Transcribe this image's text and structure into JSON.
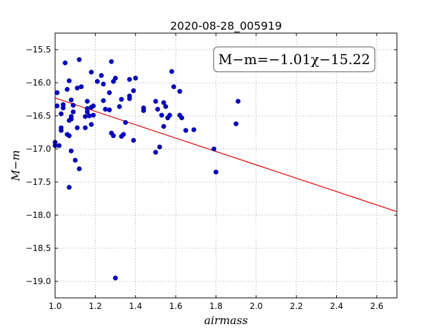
{
  "chart_data": {
    "type": "scatter",
    "title": "2020-08-28_005919",
    "xlabel": "airmass",
    "ylabel": "M−m",
    "xlim": [
      1.0,
      2.7
    ],
    "ylim": [
      -19.25,
      -15.25
    ],
    "y_inverted": true,
    "grid": true,
    "xticks": [
      1.0,
      1.2,
      1.4,
      1.6,
      1.8,
      2.0,
      2.2,
      2.4,
      2.6
    ],
    "xtick_labels": [
      "1.0",
      "1.2",
      "1.4",
      "1.6",
      "1.8",
      "2.0",
      "2.2",
      "2.4",
      "2.6"
    ],
    "yticks": [
      -15.5,
      -16.0,
      -16.5,
      -17.0,
      -17.5,
      -18.0,
      -18.5,
      -19.0
    ],
    "ytick_labels": [
      "−15.5",
      "−16.0",
      "−16.5",
      "−17.0",
      "−17.5",
      "−18.0",
      "−18.5",
      "−19.0"
    ],
    "annotation": "M−m=−1.01χ−15.22",
    "annotation_placement": "top-right",
    "point_color": "#0000cc",
    "fit_color": "#dd0000",
    "fit": {
      "slope": -1.01,
      "intercept": -15.22,
      "x_range": [
        1.0,
        2.7
      ]
    },
    "points": [
      [
        1.0,
        -16.9
      ],
      [
        1.0,
        -16.95
      ],
      [
        1.01,
        -16.15
      ],
      [
        1.01,
        -16.35
      ],
      [
        1.02,
        -16.95
      ],
      [
        1.03,
        -16.72
      ],
      [
        1.03,
        -16.68
      ],
      [
        1.03,
        -16.47
      ],
      [
        1.04,
        -16.38
      ],
      [
        1.04,
        -16.33
      ],
      [
        1.05,
        -15.7
      ],
      [
        1.06,
        -16.1
      ],
      [
        1.06,
        -16.78
      ],
      [
        1.07,
        -15.97
      ],
      [
        1.07,
        -16.8
      ],
      [
        1.07,
        -16.57
      ],
      [
        1.07,
        -17.58
      ],
      [
        1.08,
        -17.03
      ],
      [
        1.08,
        -16.55
      ],
      [
        1.08,
        -16.26
      ],
      [
        1.08,
        -16.51
      ],
      [
        1.09,
        -16.34
      ],
      [
        1.09,
        -16.44
      ],
      [
        1.1,
        -17.17
      ],
      [
        1.11,
        -16.68
      ],
      [
        1.11,
        -16.08
      ],
      [
        1.12,
        -15.65
      ],
      [
        1.12,
        -17.3
      ],
      [
        1.13,
        -16.06
      ],
      [
        1.15,
        -16.68
      ],
      [
        1.15,
        -16.51
      ],
      [
        1.16,
        -16.28
      ],
      [
        1.16,
        -16.39
      ],
      [
        1.16,
        -16.44
      ],
      [
        1.17,
        -16.5
      ],
      [
        1.18,
        -15.84
      ],
      [
        1.18,
        -16.37
      ],
      [
        1.18,
        -16.63
      ],
      [
        1.19,
        -16.49
      ],
      [
        1.19,
        -16.35
      ],
      [
        1.21,
        -15.98
      ],
      [
        1.23,
        -15.89
      ],
      [
        1.24,
        -16.27
      ],
      [
        1.24,
        -16.02
      ],
      [
        1.25,
        -16.4
      ],
      [
        1.27,
        -16.41
      ],
      [
        1.27,
        -16.15
      ],
      [
        1.28,
        -15.68
      ],
      [
        1.28,
        -16.76
      ],
      [
        1.29,
        -16.8
      ],
      [
        1.29,
        -15.98
      ],
      [
        1.3,
        -18.95
      ],
      [
        1.3,
        -15.93
      ],
      [
        1.32,
        -16.36
      ],
      [
        1.33,
        -16.81
      ],
      [
        1.33,
        -16.25
      ],
      [
        1.34,
        -16.78
      ],
      [
        1.35,
        -16.6
      ],
      [
        1.37,
        -15.95
      ],
      [
        1.37,
        -16.24
      ],
      [
        1.37,
        -16.2
      ],
      [
        1.39,
        -16.12
      ],
      [
        1.39,
        -16.87
      ],
      [
        1.4,
        -15.93
      ],
      [
        1.44,
        -16.42
      ],
      [
        1.44,
        -16.38
      ],
      [
        1.5,
        -16.28
      ],
      [
        1.5,
        -17.05
      ],
      [
        1.51,
        -16.4
      ],
      [
        1.52,
        -16.97
      ],
      [
        1.53,
        -16.49
      ],
      [
        1.54,
        -16.3
      ],
      [
        1.54,
        -16.66
      ],
      [
        1.55,
        -16.36
      ],
      [
        1.56,
        -16.53
      ],
      [
        1.57,
        -16.49
      ],
      [
        1.58,
        -15.83
      ],
      [
        1.59,
        -16.06
      ],
      [
        1.62,
        -16.49
      ],
      [
        1.62,
        -16.13
      ],
      [
        1.63,
        -16.53
      ],
      [
        1.65,
        -16.72
      ],
      [
        1.69,
        -16.71
      ],
      [
        1.79,
        -17.0
      ],
      [
        1.8,
        -17.35
      ],
      [
        1.9,
        -16.62
      ],
      [
        1.91,
        -16.28
      ]
    ]
  }
}
